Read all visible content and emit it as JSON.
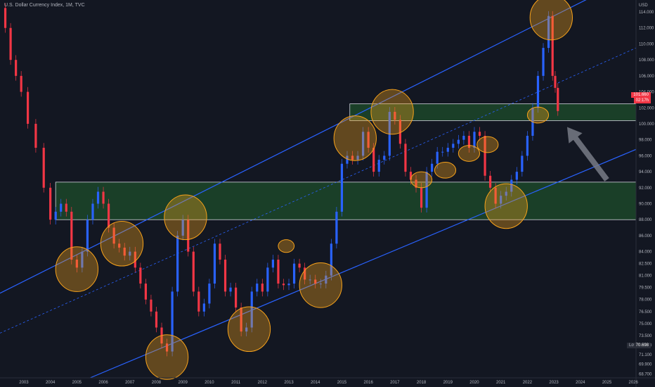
{
  "header": {
    "title": "U.S. Dollar Currency Index, 1M, TVC"
  },
  "axis": {
    "currency": "USD"
  },
  "badges": {
    "price": "101.660",
    "time": "02:17h",
    "low_label": "Low",
    "low_value": "70.698"
  },
  "colors": {
    "bg": "#131722",
    "up": "#2962ff",
    "down": "#f23645",
    "channel": "#2962ff",
    "zone_fill": "#1e4d2b",
    "zone_stroke": "#d1d4dc",
    "circle": "#f7a21b",
    "arrow": "#787b86",
    "grid": "#1e222d"
  },
  "chart_data": {
    "type": "candlestick",
    "title": "U.S. Dollar Currency Index, 1M, TVC",
    "x_ticks": [
      "2003",
      "2004",
      "2005",
      "2006",
      "2007",
      "2008",
      "2009",
      "2010",
      "2011",
      "2012",
      "2013",
      "2014",
      "2015",
      "2016",
      "2017",
      "2018",
      "2019",
      "2020",
      "2021",
      "2022",
      "2023",
      "2024",
      "2025",
      "2026"
    ],
    "y_ticks": [
      "114.000",
      "112.000",
      "110.000",
      "108.000",
      "106.000",
      "104.000",
      "102.000",
      "100.000",
      "98.000",
      "96.000",
      "94.000",
      "92.000",
      "90.000",
      "88.000",
      "86.000",
      "84.000",
      "82.500",
      "81.000",
      "79.500",
      "78.000",
      "76.500",
      "75.000",
      "73.500",
      "72.300",
      "71.100",
      "69.900",
      "68.700"
    ],
    "ylim": [
      68.2,
      115.5
    ],
    "xlim": [
      2002.1,
      2026.1
    ],
    "prices": [
      [
        2002.2,
        114.5
      ],
      [
        2002.4,
        112
      ],
      [
        2002.6,
        108
      ],
      [
        2002.8,
        106
      ],
      [
        2003.0,
        104
      ],
      [
        2003.3,
        100
      ],
      [
        2003.6,
        97
      ],
      [
        2003.9,
        92
      ],
      [
        2004.1,
        88
      ],
      [
        2004.3,
        89
      ],
      [
        2004.5,
        90
      ],
      [
        2004.7,
        89
      ],
      [
        2004.9,
        83
      ],
      [
        2005.1,
        82
      ],
      [
        2005.3,
        84
      ],
      [
        2005.5,
        88
      ],
      [
        2005.7,
        90
      ],
      [
        2005.9,
        91.5
      ],
      [
        2006.1,
        90
      ],
      [
        2006.3,
        87
      ],
      [
        2006.5,
        85
      ],
      [
        2006.7,
        84.5
      ],
      [
        2006.9,
        83.5
      ],
      [
        2007.1,
        84
      ],
      [
        2007.3,
        82
      ],
      [
        2007.5,
        80
      ],
      [
        2007.7,
        78
      ],
      [
        2007.9,
        76.5
      ],
      [
        2008.1,
        74.5
      ],
      [
        2008.3,
        72.5
      ],
      [
        2008.5,
        71.5
      ],
      [
        2008.7,
        79
      ],
      [
        2008.9,
        86
      ],
      [
        2009.1,
        88
      ],
      [
        2009.3,
        84
      ],
      [
        2009.5,
        79
      ],
      [
        2009.7,
        76.5
      ],
      [
        2009.9,
        77.5
      ],
      [
        2010.1,
        80
      ],
      [
        2010.3,
        85
      ],
      [
        2010.5,
        83
      ],
      [
        2010.7,
        79
      ],
      [
        2010.9,
        79.5
      ],
      [
        2011.1,
        77
      ],
      [
        2011.3,
        74
      ],
      [
        2011.5,
        74.5
      ],
      [
        2011.7,
        79
      ],
      [
        2011.9,
        80
      ],
      [
        2012.1,
        79
      ],
      [
        2012.3,
        82
      ],
      [
        2012.5,
        83
      ],
      [
        2012.7,
        80
      ],
      [
        2012.9,
        79.8
      ],
      [
        2013.1,
        80
      ],
      [
        2013.3,
        82.5
      ],
      [
        2013.5,
        82
      ],
      [
        2013.7,
        80.5
      ],
      [
        2013.9,
        80.5
      ],
      [
        2014.1,
        80
      ],
      [
        2014.3,
        80
      ],
      [
        2014.5,
        81
      ],
      [
        2014.7,
        85
      ],
      [
        2014.9,
        89
      ],
      [
        2015.1,
        95
      ],
      [
        2015.3,
        96
      ],
      [
        2015.5,
        95.5
      ],
      [
        2015.7,
        96
      ],
      [
        2015.9,
        99
      ],
      [
        2016.1,
        97
      ],
      [
        2016.3,
        94
      ],
      [
        2016.5,
        95.5
      ],
      [
        2016.7,
        96
      ],
      [
        2016.9,
        101.5
      ],
      [
        2017.1,
        100.5
      ],
      [
        2017.3,
        97.5
      ],
      [
        2017.5,
        94
      ],
      [
        2017.7,
        93
      ],
      [
        2017.9,
        92
      ],
      [
        2018.1,
        89.5
      ],
      [
        2018.3,
        94
      ],
      [
        2018.5,
        95
      ],
      [
        2018.7,
        96.5
      ],
      [
        2018.9,
        96.5
      ],
      [
        2019.1,
        97
      ],
      [
        2019.3,
        97.5
      ],
      [
        2019.5,
        98
      ],
      [
        2019.7,
        98.5
      ],
      [
        2019.9,
        97
      ],
      [
        2020.1,
        99
      ],
      [
        2020.3,
        98.5
      ],
      [
        2020.5,
        93.5
      ],
      [
        2020.7,
        92
      ],
      [
        2020.9,
        90
      ],
      [
        2021.1,
        91
      ],
      [
        2021.3,
        91.5
      ],
      [
        2021.5,
        93
      ],
      [
        2021.7,
        94
      ],
      [
        2021.9,
        96
      ],
      [
        2022.1,
        98.5
      ],
      [
        2022.3,
        102
      ],
      [
        2022.5,
        106
      ],
      [
        2022.7,
        109.5
      ],
      [
        2022.9,
        113.5
      ],
      [
        2023.0,
        106
      ],
      [
        2023.1,
        104.5
      ],
      [
        2023.2,
        101.6
      ]
    ],
    "channel_lines": [
      [
        [
          2002.1,
          78.8
        ],
        [
          2024.8,
          116.5
        ]
      ],
      [
        [
          2005.5,
          68.2
        ],
        [
          2026.1,
          96.8
        ]
      ]
    ],
    "mid_line": [
      [
        2002.1,
        73.8
      ],
      [
        2026.1,
        109.5
      ]
    ],
    "zones": [
      {
        "x0": 2004.2,
        "x1": 2026.1,
        "y0": 88.0,
        "y1": 92.7
      },
      {
        "x0": 2015.3,
        "x1": 2026.1,
        "y0": 100.4,
        "y1": 102.5
      }
    ],
    "circles": [
      [
        2005.0,
        81.8,
        0.8,
        2.8
      ],
      [
        2006.7,
        85.0,
        0.8,
        2.8
      ],
      [
        2008.4,
        70.8,
        0.8,
        2.8
      ],
      [
        2009.1,
        88.3,
        0.8,
        2.8
      ],
      [
        2011.5,
        74.3,
        0.8,
        2.8
      ],
      [
        2012.9,
        84.7,
        0.3,
        0.8
      ],
      [
        2014.2,
        79.8,
        0.8,
        2.8
      ],
      [
        2015.5,
        98.2,
        0.8,
        2.8
      ],
      [
        2016.9,
        101.5,
        0.8,
        2.8
      ],
      [
        2018.0,
        93.0,
        0.4,
        1.0
      ],
      [
        2018.9,
        94.2,
        0.4,
        1.0
      ],
      [
        2019.8,
        96.3,
        0.4,
        1.0
      ],
      [
        2020.5,
        97.4,
        0.4,
        1.0
      ],
      [
        2021.2,
        89.7,
        0.8,
        2.8
      ],
      [
        2022.4,
        101.1,
        0.4,
        1.0
      ],
      [
        2022.9,
        113.3,
        0.8,
        2.8
      ]
    ],
    "arrow": {
      "from": [
        2025.0,
        93.0
      ],
      "to": [
        2023.5,
        99.6
      ]
    },
    "grid": false,
    "price_scale_position": "right"
  }
}
